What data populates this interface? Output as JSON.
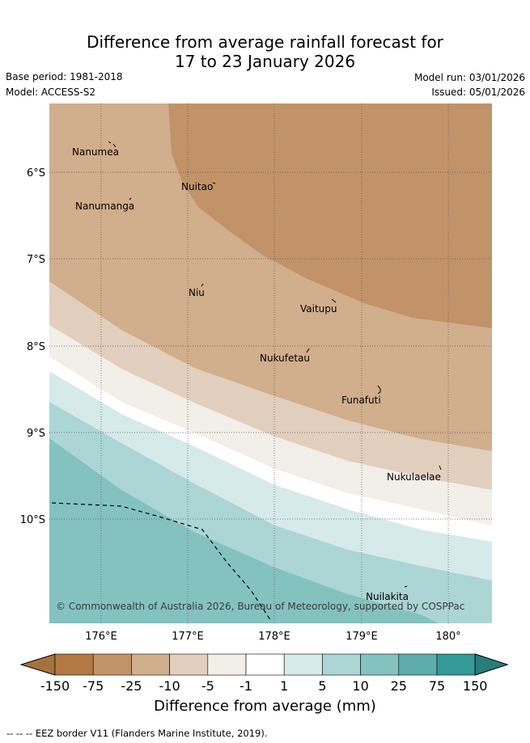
{
  "title": {
    "line1": "Difference from average rainfall forecast for",
    "line2": "17 to 23 January 2026"
  },
  "meta": {
    "base_period": "Base period: 1981-2018",
    "model": "Model: ACCESS-S2",
    "model_run": "Model run: 03/01/2026",
    "issued": "Issued: 05/01/2026"
  },
  "axes": {
    "lon_ticks": [
      "176°E",
      "177°E",
      "178°E",
      "179°E",
      "180°"
    ],
    "lat_ticks": [
      "6°S",
      "7°S",
      "8°S",
      "9°S",
      "10°S"
    ],
    "lon_range": [
      175.4,
      180.5
    ],
    "lat_range": [
      -5.35,
      -11.35
    ]
  },
  "places": [
    {
      "name": "Nanumea",
      "lon": 176.1,
      "lat": -5.66
    },
    {
      "name": "Nuitao",
      "lon": 177.34,
      "lat": -6.11
    },
    {
      "name": "Nanumanga",
      "lon": 176.32,
      "lat": -6.29
    },
    {
      "name": "Niu",
      "lon": 177.16,
      "lat": -7.3
    },
    {
      "name": "Vaitupu",
      "lon": 178.68,
      "lat": -7.48
    },
    {
      "name": "Nukufetau",
      "lon": 178.38,
      "lat": -8.03
    },
    {
      "name": "Funafuti",
      "lon": 179.2,
      "lat": -8.52
    },
    {
      "name": "Nukulaelae",
      "lon": 179.84,
      "lat": -9.38
    },
    {
      "name": "Nuilakita",
      "lon": 179.52,
      "lat": -10.8
    }
  ],
  "copyright": "© Commonwealth of Australia 2026, Bureau of Meteorology, supported by COSPPac",
  "colorbar": {
    "title": "Difference from average (mm)",
    "labels": [
      "-150",
      "-75",
      "-25",
      "-10",
      "-5",
      "-1",
      "1",
      "5",
      "10",
      "25",
      "75",
      "150"
    ],
    "colors": [
      "#a5723d",
      "#b27943",
      "#c29369",
      "#d1ae8c",
      "#e2cfbd",
      "#f2eee8",
      "#ffffff",
      "#d6eaea",
      "#acd6d5",
      "#84c2c0",
      "#5cadab",
      "#349a97",
      "#287c7c"
    ]
  },
  "legend_note": "--  --  -- EEZ border V11 (Flanders Marine Institute, 2019)."
}
